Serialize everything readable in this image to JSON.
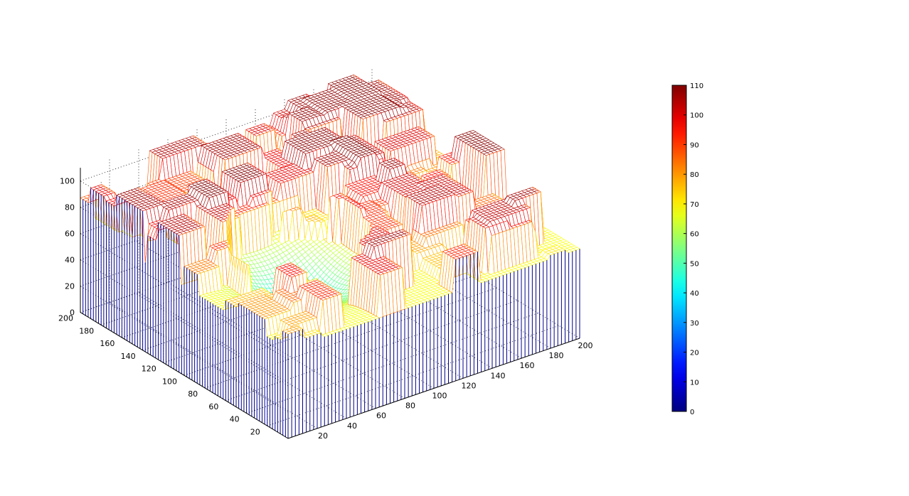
{
  "chart_data": {
    "type": "mesh3d",
    "x_ticks": [
      20,
      40,
      60,
      80,
      100,
      120,
      140,
      160,
      180,
      200
    ],
    "y_ticks": [
      20,
      40,
      60,
      80,
      100,
      120,
      140,
      160,
      180,
      200
    ],
    "z_ticks": [
      0,
      20,
      40,
      60,
      80,
      100
    ],
    "xlim": [
      0,
      200
    ],
    "ylim": [
      0,
      200
    ],
    "zlim": [
      0,
      110
    ],
    "grid": true,
    "colormap": "jet",
    "colorbar": {
      "ticks": [
        0,
        10,
        20,
        30,
        40,
        50,
        60,
        70,
        80,
        90,
        100,
        110
      ],
      "range": [
        0,
        110
      ],
      "placement": "right"
    }
  }
}
